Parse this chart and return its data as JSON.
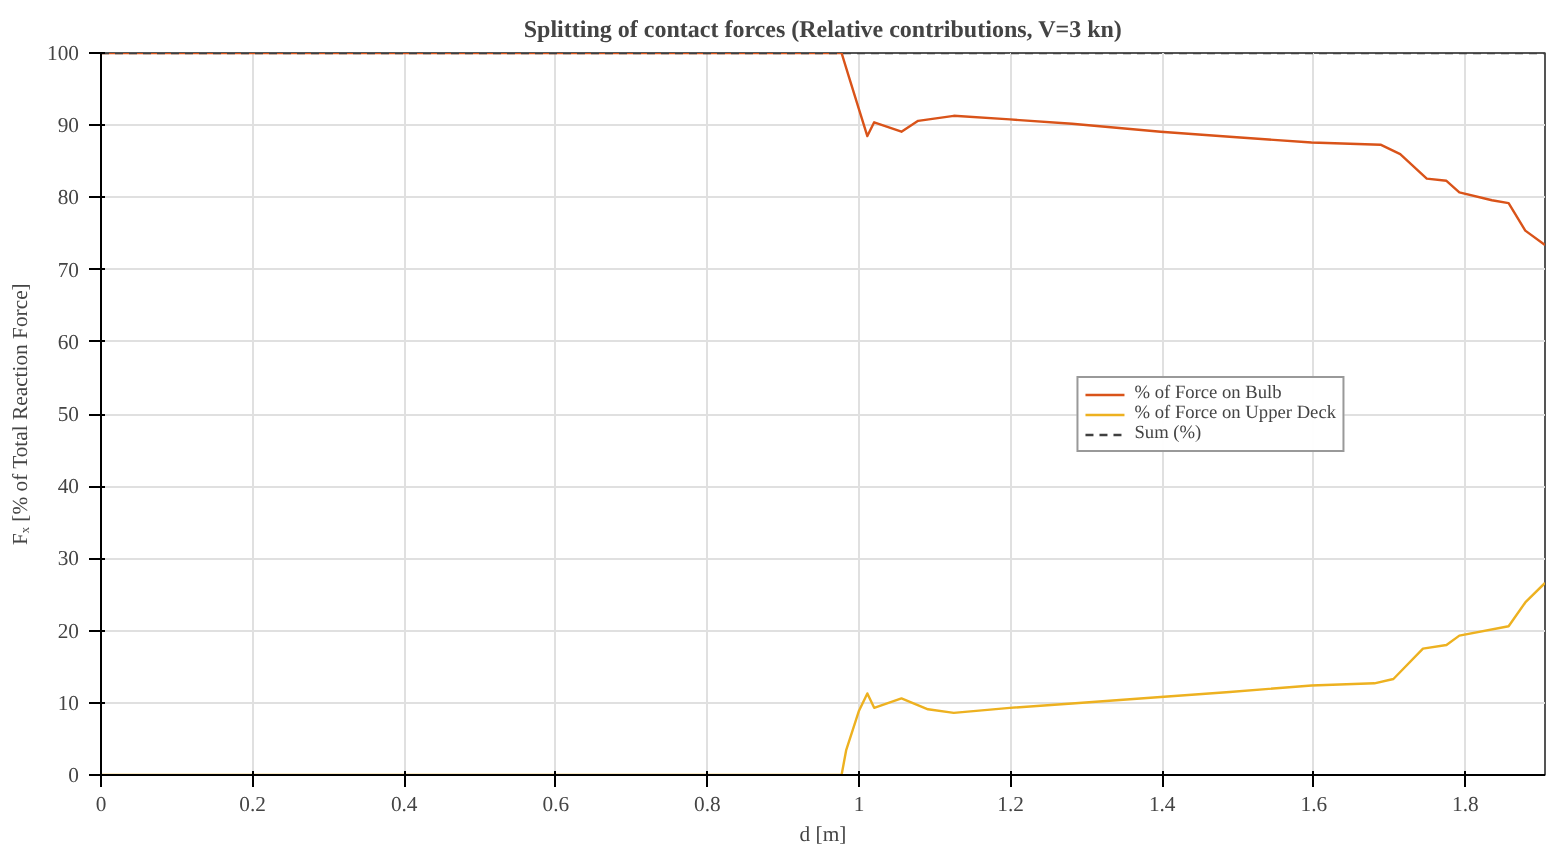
{
  "chart_data": {
    "type": "line",
    "title": "Splitting of contact forces (Relative contributions, V=3 kn)",
    "xlabel": "d [m]",
    "ylabel": "Fₓ [% of Total Reaction Force]",
    "xlim": [
      0,
      1.905
    ],
    "ylim": [
      0,
      100
    ],
    "xticks": [
      0,
      0.2,
      0.4,
      0.6,
      0.8,
      1,
      1.2,
      1.4,
      1.6,
      1.8
    ],
    "yticks": [
      0,
      10,
      20,
      30,
      40,
      50,
      60,
      70,
      80,
      90,
      100
    ],
    "grid": true,
    "legend": "right",
    "series": [
      {
        "name": "% of Force on Bulb",
        "color": "#d95319",
        "line_style": "solid",
        "x": [
          0,
          0.977,
          0.987,
          1.0,
          1.011,
          1.02,
          1.056,
          1.078,
          1.125,
          1.199,
          1.281,
          1.398,
          1.489,
          1.597,
          1.688,
          1.714,
          1.749,
          1.775,
          1.792,
          1.835,
          1.857,
          1.879,
          1.905
        ],
        "values": [
          100,
          100,
          96.6,
          92.2,
          88.5,
          90.4,
          89.1,
          90.6,
          91.3,
          90.8,
          90.2,
          89.1,
          88.4,
          87.6,
          87.3,
          86.0,
          82.6,
          82.3,
          80.7,
          79.6,
          79.2,
          75.4,
          73.4
        ]
      },
      {
        "name": "% of Force on Upper Deck",
        "color": "#edb120",
        "line_style": "solid",
        "x": [
          0,
          0.977,
          0.983,
          1.0,
          1.011,
          1.02,
          1.056,
          1.091,
          1.125,
          1.199,
          1.281,
          1.398,
          1.489,
          1.597,
          1.68,
          1.705,
          1.744,
          1.775,
          1.792,
          1.857,
          1.879,
          1.905
        ],
        "values": [
          0,
          0,
          3.4,
          8.9,
          11.3,
          9.3,
          10.6,
          9.1,
          8.6,
          9.3,
          9.9,
          10.8,
          11.5,
          12.4,
          12.7,
          13.3,
          17.5,
          18.0,
          19.3,
          20.6,
          23.9,
          26.6
        ]
      },
      {
        "name": "Sum (%)",
        "color": "#404040",
        "line_style": "dashed",
        "x": [
          0,
          1.905
        ],
        "values": [
          100,
          100
        ]
      }
    ]
  }
}
